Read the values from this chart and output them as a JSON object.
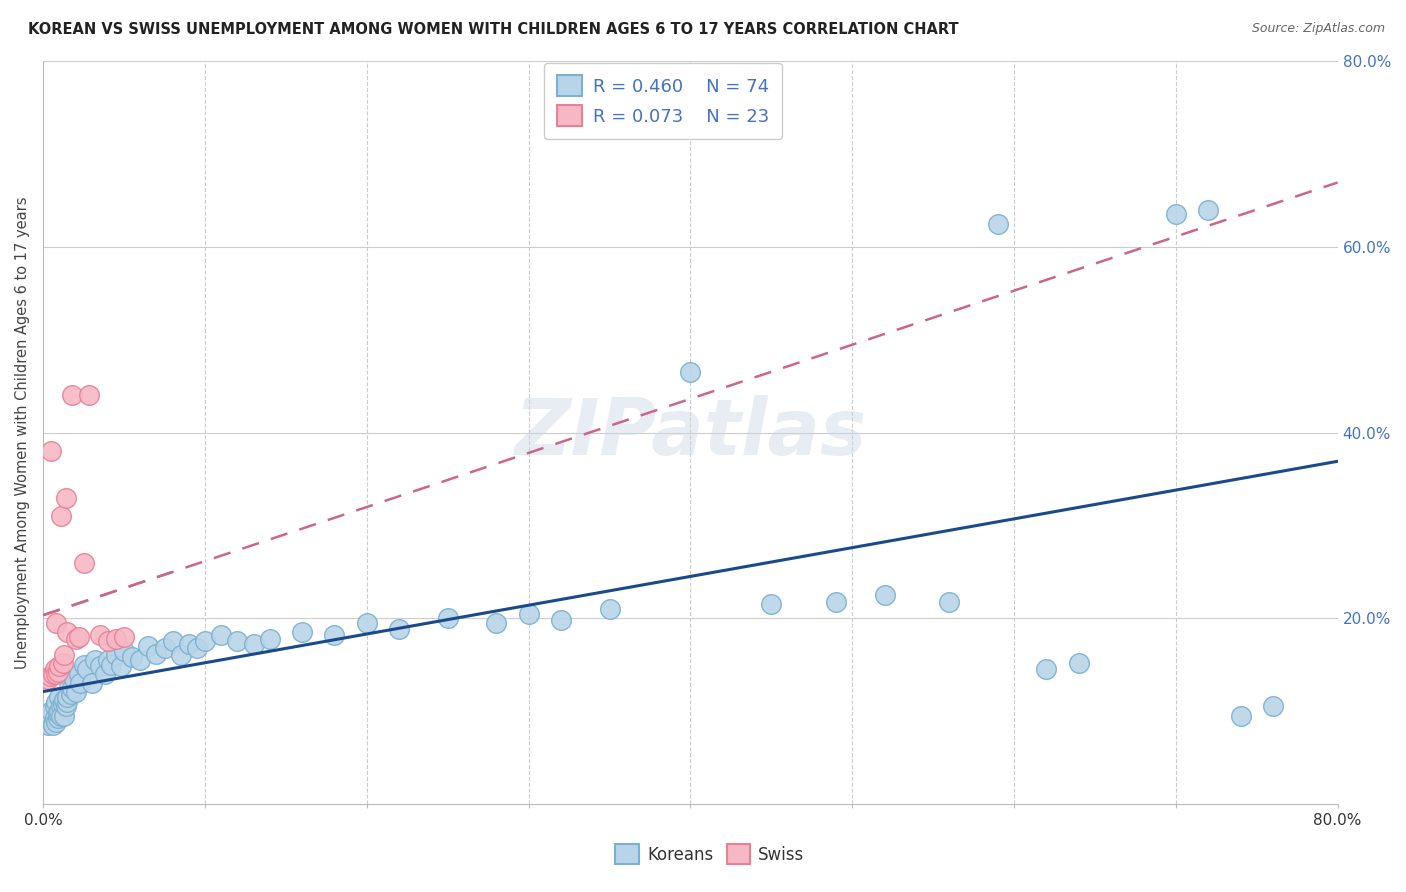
{
  "title": "KOREAN VS SWISS UNEMPLOYMENT AMONG WOMEN WITH CHILDREN AGES 6 TO 17 YEARS CORRELATION CHART",
  "source": "Source: ZipAtlas.com",
  "ylabel": "Unemployment Among Women with Children Ages 6 to 17 years",
  "r_korean": 0.46,
  "n_korean": 74,
  "r_swiss": 0.073,
  "n_swiss": 23,
  "watermark": "ZIPatlas",
  "blue_face": "#b8d4e8",
  "blue_edge": "#7ab0d0",
  "pink_face": "#f5b8c4",
  "pink_edge": "#e88098",
  "trend_blue": "#1a4a8a",
  "trend_pink": "#cc4466",
  "trend_pink_dashed": "#cc6688",
  "xlim": [
    0.0,
    0.8
  ],
  "ylim": [
    0.0,
    0.8
  ],
  "grid_color": "#cccccc",
  "bg_color": "#ffffff",
  "title_color": "#222222",
  "source_color": "#666666",
  "tick_label_color": "#4472c4",
  "axis_label_color": "#444444",
  "bottom_legend_color": "#333333",
  "korean_x": [
    0.003,
    0.004,
    0.005,
    0.005,
    0.006,
    0.007,
    0.007,
    0.008,
    0.008,
    0.009,
    0.009,
    0.01,
    0.01,
    0.011,
    0.011,
    0.012,
    0.013,
    0.013,
    0.014,
    0.015,
    0.015,
    0.016,
    0.017,
    0.018,
    0.019,
    0.02,
    0.022,
    0.023,
    0.025,
    0.027,
    0.03,
    0.032,
    0.035,
    0.038,
    0.04,
    0.042,
    0.045,
    0.048,
    0.05,
    0.055,
    0.06,
    0.065,
    0.07,
    0.075,
    0.08,
    0.085,
    0.09,
    0.095,
    0.1,
    0.11,
    0.12,
    0.13,
    0.14,
    0.16,
    0.18,
    0.2,
    0.22,
    0.25,
    0.28,
    0.3,
    0.32,
    0.35,
    0.4,
    0.45,
    0.49,
    0.52,
    0.56,
    0.59,
    0.62,
    0.64,
    0.7,
    0.72,
    0.74,
    0.76
  ],
  "korean_y": [
    0.085,
    0.09,
    0.095,
    0.1,
    0.085,
    0.092,
    0.105,
    0.088,
    0.11,
    0.092,
    0.098,
    0.1,
    0.115,
    0.105,
    0.095,
    0.108,
    0.112,
    0.095,
    0.105,
    0.11,
    0.115,
    0.13,
    0.118,
    0.125,
    0.135,
    0.12,
    0.14,
    0.13,
    0.15,
    0.145,
    0.13,
    0.155,
    0.148,
    0.14,
    0.155,
    0.15,
    0.16,
    0.148,
    0.165,
    0.158,
    0.155,
    0.17,
    0.162,
    0.168,
    0.175,
    0.16,
    0.172,
    0.168,
    0.175,
    0.182,
    0.175,
    0.172,
    0.178,
    0.185,
    0.182,
    0.195,
    0.188,
    0.2,
    0.195,
    0.205,
    0.198,
    0.21,
    0.465,
    0.215,
    0.218,
    0.225,
    0.218,
    0.625,
    0.145,
    0.152,
    0.635,
    0.64,
    0.095,
    0.105
  ],
  "swiss_x": [
    0.003,
    0.004,
    0.005,
    0.006,
    0.007,
    0.008,
    0.008,
    0.009,
    0.01,
    0.011,
    0.012,
    0.013,
    0.014,
    0.015,
    0.018,
    0.02,
    0.022,
    0.025,
    0.028,
    0.035,
    0.04,
    0.045,
    0.05
  ],
  "swiss_y": [
    0.135,
    0.138,
    0.38,
    0.14,
    0.145,
    0.14,
    0.195,
    0.142,
    0.148,
    0.31,
    0.152,
    0.16,
    0.33,
    0.185,
    0.44,
    0.178,
    0.18,
    0.26,
    0.44,
    0.182,
    0.175,
    0.178,
    0.18
  ],
  "blue_trend_x0": 0.0,
  "blue_trend_y0": 0.04,
  "blue_trend_x1": 0.8,
  "blue_trend_y1": 0.335,
  "pink_trend_x0": 0.0,
  "pink_trend_y0": 0.195,
  "pink_trend_x1": 0.08,
  "pink_trend_y1": 0.175
}
